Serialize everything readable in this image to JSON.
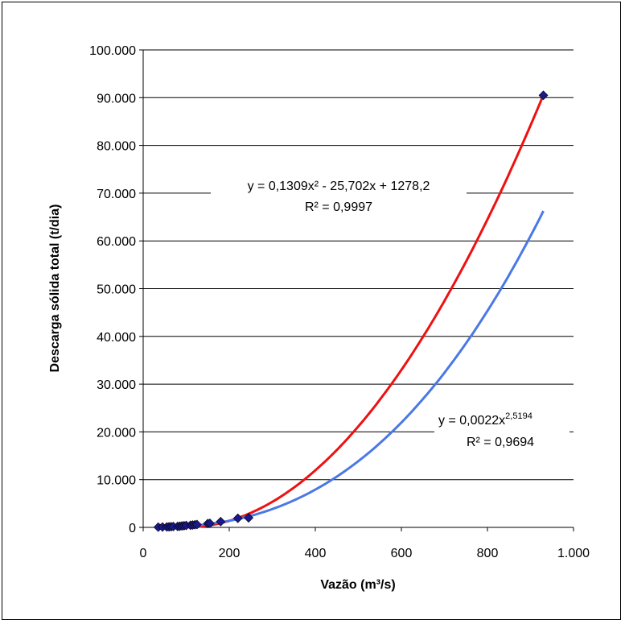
{
  "chart_data": {
    "type": "scatter",
    "xlabel": "Vazão (m³/s)",
    "ylabel": "Descarga sólida total (t/dia)",
    "xlim": [
      0,
      1000
    ],
    "ylim": [
      0,
      100000
    ],
    "x_ticks": [
      "0",
      "200",
      "400",
      "600",
      "800",
      "1.000"
    ],
    "y_ticks": [
      "0",
      "10.000",
      "20.000",
      "30.000",
      "40.000",
      "50.000",
      "60.000",
      "70.000",
      "80.000",
      "90.000",
      "100.000"
    ],
    "grid": "horizontal",
    "series": [
      {
        "marker": "diamond",
        "color": "#1a1a8c",
        "x": [
          35,
          45,
          55,
          60,
          65,
          70,
          80,
          85,
          90,
          95,
          100,
          110,
          115,
          120,
          125,
          150,
          155,
          180,
          220,
          245,
          930
        ],
        "y": [
          50,
          80,
          100,
          120,
          150,
          180,
          200,
          250,
          300,
          350,
          400,
          450,
          500,
          550,
          600,
          800,
          850,
          1200,
          1900,
          2000,
          90500
        ]
      }
    ],
    "trendlines": [
      {
        "kind": "polynomial",
        "color": "#ee1111",
        "coefficients": [
          0.1309,
          -25.702,
          1278.2
        ],
        "x_range": [
          35,
          930
        ],
        "equation_text": "y = 0,1309x² - 25,702x + 1278,2",
        "r2_text": "R² = 0,9997"
      },
      {
        "kind": "power",
        "color": "#4a78e6",
        "coefficient": 0.0022,
        "exponent": 2.5194,
        "x_range": [
          35,
          930
        ],
        "equation_text": "y = 0,0022x",
        "equation_exponent": "2,5194",
        "r2_text": "R² = 0,9694"
      }
    ]
  }
}
